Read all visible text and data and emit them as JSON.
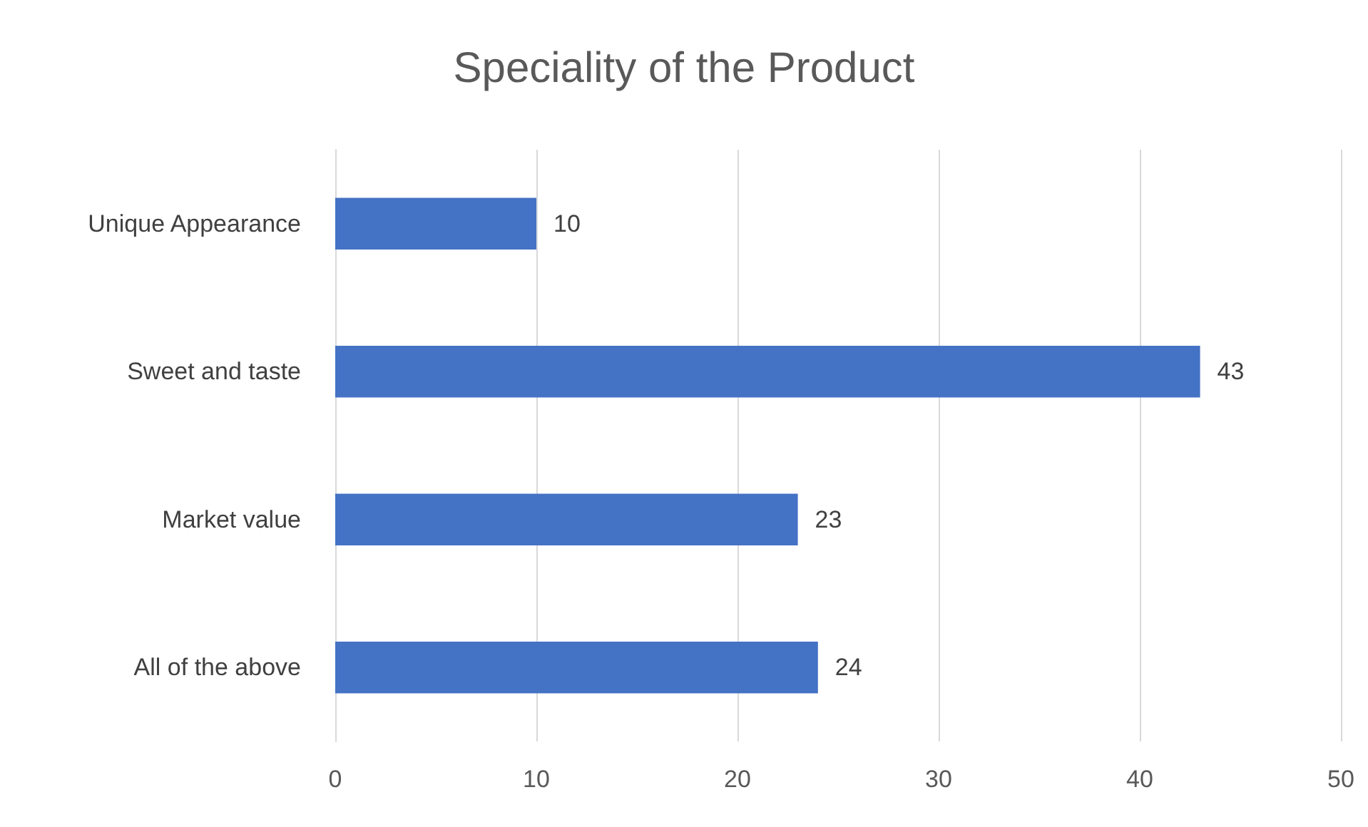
{
  "chart_data": {
    "type": "bar",
    "orientation": "horizontal",
    "title": "Speciality of the Product",
    "categories": [
      "Unique Appearance",
      "Sweet and taste",
      "Market value",
      "All of the above"
    ],
    "values": [
      10,
      43,
      23,
      24
    ],
    "color": "#4472c4",
    "xlim": [
      0,
      50
    ],
    "xticks": [
      0,
      10,
      20,
      30,
      40,
      50
    ],
    "grid": "x",
    "data_labels": true
  }
}
